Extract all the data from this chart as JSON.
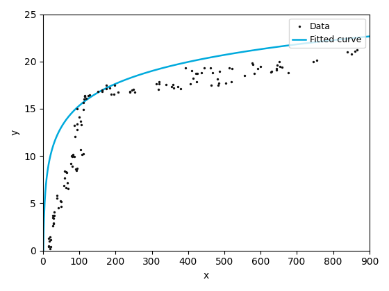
{
  "xlabel": "x",
  "ylabel": "y",
  "xlim": [
    0,
    900
  ],
  "ylim": [
    0,
    25
  ],
  "xticks": [
    0,
    100,
    200,
    300,
    400,
    500,
    600,
    700,
    800,
    900
  ],
  "yticks": [
    0,
    5,
    10,
    15,
    20,
    25
  ],
  "curve_color": "#00AADD",
  "data_color": "#111111",
  "legend_labels": [
    "Data",
    "Fitted curve"
  ],
  "fit_a": 3.33,
  "fit_b": 0.0,
  "background_color": "#ffffff",
  "seed": 42
}
